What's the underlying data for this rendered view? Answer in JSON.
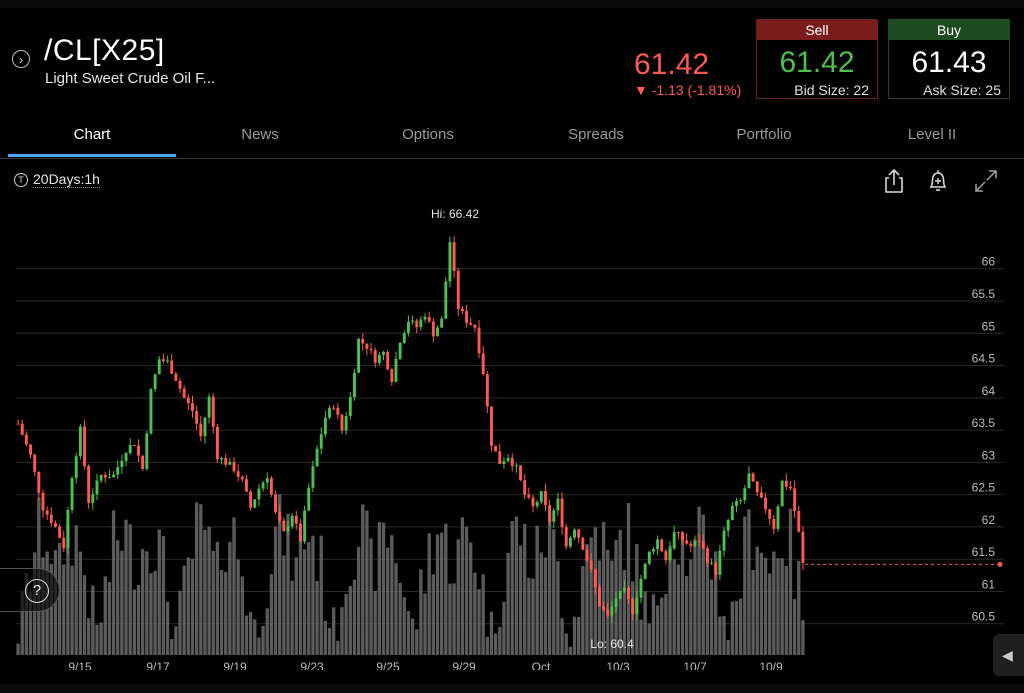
{
  "header": {
    "symbol": "/CL[X25]",
    "description": "Light Sweet Crude Oil F...",
    "last_price": "61.42",
    "change": "▼ -1.13 (-1.81%)",
    "sell": {
      "label": "Sell",
      "price": "61.42",
      "size": "Bid Size: 22"
    },
    "buy": {
      "label": "Buy",
      "price": "61.43",
      "size": "Ask Size: 25"
    }
  },
  "tabs": [
    "Chart",
    "News",
    "Options",
    "Spreads",
    "Portfolio",
    "Level II"
  ],
  "active_tab": "Chart",
  "toolbar": {
    "timeframe": "20Days:1h",
    "timeframe_icon": "T"
  },
  "icons": {
    "nav": "chevron-right-circle-icon",
    "share": "share-icon",
    "alert": "bell-plus-icon",
    "expand": "expand-icon",
    "help": "help-icon",
    "side": "triangle-left-icon"
  },
  "colors": {
    "up": "#4fbf4f",
    "down": "#ff5a52",
    "accent": "#4aa3ff",
    "volume": "#6b6b6b"
  },
  "help_label": "?",
  "side_label": "◀",
  "chart_data": {
    "type": "candlestick",
    "x_ticks": [
      "9/15",
      "9/17",
      "9/19",
      "9/23",
      "9/25",
      "9/29",
      "Oct",
      "10/3",
      "10/7",
      "10/9"
    ],
    "y_ticks": [
      60.5,
      61,
      61.5,
      62,
      62.5,
      63,
      63.5,
      64,
      64.5,
      65,
      65.5,
      66
    ],
    "ylim": [
      60.4,
      66.6
    ],
    "hi_label": "Hi: 66.42",
    "lo_label": "Lo: 60.4",
    "current_price": 61.42,
    "price_path": [
      [
        0,
        63.6
      ],
      [
        3,
        63.1
      ],
      [
        6,
        62.3
      ],
      [
        9,
        62.0
      ],
      [
        11,
        61.7
      ],
      [
        13,
        62.8
      ],
      [
        15,
        63.5
      ],
      [
        17,
        62.4
      ],
      [
        20,
        62.8
      ],
      [
        23,
        62.8
      ],
      [
        26,
        63.2
      ],
      [
        28,
        63.3
      ],
      [
        30,
        62.9
      ],
      [
        32,
        64.1
      ],
      [
        34,
        64.6
      ],
      [
        36,
        64.55
      ],
      [
        38,
        64.3
      ],
      [
        40,
        64.0
      ],
      [
        42,
        63.8
      ],
      [
        44,
        63.4
      ],
      [
        46,
        64.0
      ],
      [
        48,
        63.1
      ],
      [
        50,
        63.0
      ],
      [
        52,
        62.9
      ],
      [
        54,
        62.7
      ],
      [
        56,
        62.3
      ],
      [
        58,
        62.6
      ],
      [
        60,
        62.8
      ],
      [
        62,
        62.2
      ],
      [
        64,
        61.9
      ],
      [
        66,
        62.2
      ],
      [
        68,
        61.8
      ],
      [
        70,
        62.6
      ],
      [
        72,
        63.2
      ],
      [
        74,
        63.7
      ],
      [
        76,
        63.9
      ],
      [
        78,
        63.5
      ],
      [
        80,
        64.0
      ],
      [
        82,
        64.9
      ],
      [
        84,
        64.8
      ],
      [
        86,
        64.6
      ],
      [
        88,
        64.7
      ],
      [
        90,
        64.3
      ],
      [
        92,
        64.9
      ],
      [
        94,
        65.2
      ],
      [
        96,
        65.1
      ],
      [
        98,
        65.3
      ],
      [
        100,
        65.0
      ],
      [
        102,
        65.2
      ],
      [
        104,
        66.42
      ],
      [
        106,
        65.4
      ],
      [
        108,
        65.2
      ],
      [
        110,
        65.1
      ],
      [
        112,
        64.4
      ],
      [
        114,
        63.3
      ],
      [
        116,
        63.0
      ],
      [
        118,
        63.1
      ],
      [
        120,
        62.9
      ],
      [
        122,
        62.5
      ],
      [
        124,
        62.3
      ],
      [
        126,
        62.5
      ],
      [
        128,
        62.1
      ],
      [
        130,
        62.4
      ],
      [
        132,
        61.7
      ],
      [
        134,
        62.0
      ],
      [
        136,
        61.7
      ],
      [
        138,
        61.3
      ],
      [
        140,
        60.8
      ],
      [
        142,
        60.6
      ],
      [
        144,
        60.9
      ],
      [
        146,
        61.0
      ],
      [
        148,
        60.7
      ],
      [
        150,
        61.2
      ],
      [
        152,
        61.6
      ],
      [
        154,
        61.8
      ],
      [
        156,
        61.5
      ],
      [
        158,
        61.9
      ],
      [
        160,
        61.8
      ],
      [
        162,
        61.7
      ],
      [
        164,
        61.8
      ],
      [
        166,
        61.5
      ],
      [
        168,
        61.3
      ],
      [
        170,
        61.9
      ],
      [
        172,
        62.3
      ],
      [
        174,
        62.4
      ],
      [
        176,
        62.8
      ],
      [
        178,
        62.5
      ],
      [
        180,
        62.3
      ],
      [
        182,
        62.0
      ],
      [
        184,
        62.7
      ],
      [
        186,
        62.6
      ],
      [
        188,
        61.9
      ],
      [
        189,
        61.42
      ]
    ]
  }
}
